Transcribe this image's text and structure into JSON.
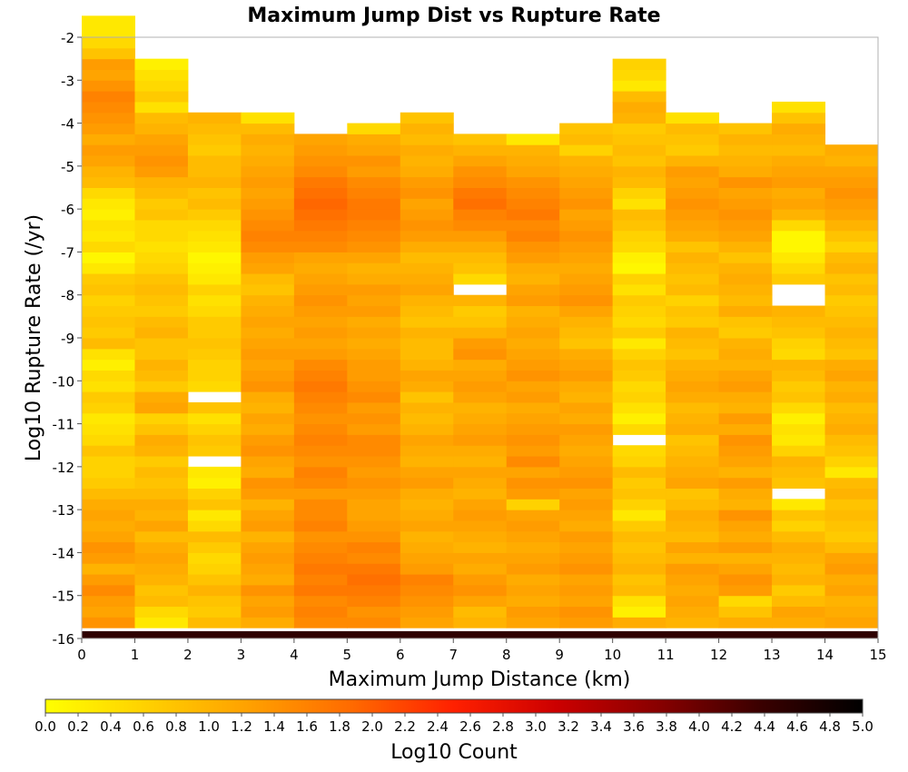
{
  "chart_data": {
    "type": "heatmap",
    "title": "Maximum Jump Dist vs Rupture Rate",
    "xlabel": "Maximum Jump Distance (km)",
    "ylabel": "Log10 Rupture Rate (/yr)",
    "xlim": [
      0,
      15
    ],
    "ylim": [
      -16,
      -2
    ],
    "x_ticks": [
      "0",
      "1",
      "2",
      "3",
      "4",
      "5",
      "6",
      "7",
      "8",
      "9",
      "10",
      "11",
      "12",
      "13",
      "14",
      "15"
    ],
    "y_ticks": [
      "-2",
      "-3",
      "-4",
      "-5",
      "-6",
      "-7",
      "-8",
      "-9",
      "-10",
      "-11",
      "-12",
      "-13",
      "-14",
      "-15",
      "-16"
    ],
    "x_bin_width": 1,
    "y_bin_width": 0.25,
    "y_bins_start": -16,
    "columns_note": "values[c] = Log10 Count per rate bin for x-bin c, ordered from -16 upward",
    "values": [
      [
        4.5,
        1.4,
        1.2,
        1.3,
        1.5,
        1.3,
        1.0,
        1.3,
        1.4,
        1.2,
        1.1,
        1.2,
        1.1,
        0.9,
        0.7,
        0.6,
        0.6,
        0.8,
        0.5,
        0.4,
        0.3,
        0.6,
        0.7,
        0.4,
        0.5,
        0.2,
        0.4,
        0.9,
        0.7,
        0.8,
        0.7,
        0.6,
        0.8,
        0.7,
        0.3,
        0.1,
        0.5,
        0.3,
        0.4,
        0.2,
        0.3,
        0.5,
        0.9,
        1.0,
        1.2,
        1.3,
        1.1,
        1.3,
        1.4,
        1.5,
        1.6,
        1.4,
        1.2,
        1.3,
        0.8,
        0.5,
        0.3,
        0.3
      ],
      [
        4.5,
        0.3,
        0.5,
        0.9,
        0.8,
        1.0,
        1.1,
        1.2,
        1.1,
        0.9,
        1.2,
        1.0,
        1.1,
        0.9,
        0.8,
        0.9,
        0.7,
        1.0,
        1.1,
        0.8,
        0.6,
        1.2,
        1.1,
        0.7,
        0.9,
        1.0,
        0.8,
        0.8,
        1.0,
        0.9,
        0.7,
        0.8,
        0.9,
        0.8,
        0.6,
        0.5,
        0.4,
        0.5,
        0.5,
        0.8,
        0.7,
        0.9,
        1.0,
        1.3,
        1.4,
        1.3,
        1.2,
        1.0,
        0.9,
        0.4,
        0.7,
        0.5,
        0.4,
        0.2
      ],
      [
        4.5,
        0.9,
        0.7,
        0.8,
        1.0,
        0.8,
        0.6,
        0.5,
        0.7,
        0.9,
        0.5,
        0.3,
        0.8,
        0.6,
        0.2,
        0.3,
        -1,
        0.7,
        0.8,
        0.6,
        0.4,
        0.8,
        -1,
        0.5,
        0.6,
        0.6,
        0.7,
        0.8,
        0.7,
        0.7,
        0.5,
        0.4,
        0.6,
        0.3,
        0.2,
        0.1,
        0.3,
        0.4,
        0.5,
        0.7,
        0.9,
        0.8,
        1.0,
        0.9,
        0.9,
        0.7,
        0.8,
        0.9,
        1.0
      ],
      [
        4.5,
        1.1,
        1.3,
        1.2,
        1.4,
        1.1,
        1.2,
        1.3,
        1.2,
        1.0,
        1.3,
        1.2,
        1.0,
        1.3,
        1.4,
        1.1,
        1.2,
        1.4,
        1.3,
        1.1,
        1.2,
        1.0,
        1.1,
        1.4,
        1.3,
        1.2,
        1.3,
        1.2,
        1.1,
        1.2,
        1.1,
        1.0,
        0.8,
        0.9,
        1.2,
        1.3,
        1.5,
        1.6,
        1.5,
        1.4,
        1.3,
        1.2,
        1.3,
        1.2,
        1.1,
        1.0,
        1.1,
        0.9,
        0.4
      ],
      [
        4.5,
        1.5,
        1.6,
        1.5,
        1.7,
        1.6,
        1.7,
        1.6,
        1.5,
        1.4,
        1.6,
        1.5,
        1.5,
        1.3,
        1.5,
        1.6,
        1.4,
        1.5,
        1.6,
        1.5,
        1.4,
        1.5,
        1.6,
        1.7,
        1.6,
        1.5,
        1.3,
        1.2,
        1.3,
        1.2,
        1.3,
        1.4,
        1.3,
        1.2,
        1.1,
        1.2,
        1.5,
        1.6,
        1.7,
        1.8,
        1.9,
        1.8,
        1.7,
        1.5,
        1.4,
        1.3,
        1.2
      ],
      [
        4.5,
        1.5,
        1.4,
        1.6,
        1.7,
        1.8,
        1.7,
        1.5,
        1.6,
        1.4,
        1.3,
        1.2,
        1.2,
        1.3,
        1.4,
        1.3,
        1.4,
        1.5,
        1.5,
        1.3,
        1.4,
        1.3,
        1.5,
        1.4,
        1.3,
        1.3,
        1.2,
        1.1,
        1.2,
        1.1,
        1.3,
        1.2,
        1.3,
        1.1,
        1.0,
        1.2,
        1.4,
        1.5,
        1.6,
        1.7,
        1.7,
        1.6,
        1.5,
        1.3,
        1.4,
        1.2,
        1.1,
        0.5
      ],
      [
        4.5,
        1.2,
        1.3,
        1.4,
        1.5,
        1.6,
        1.3,
        1.2,
        1.1,
        1.0,
        1.2,
        1.1,
        1.0,
        1.1,
        1.3,
        1.2,
        1.0,
        1.1,
        1.2,
        1.0,
        0.9,
        1.0,
        0.8,
        1.1,
        1.2,
        1.0,
        0.9,
        0.9,
        1.0,
        0.8,
        0.9,
        1.0,
        1.2,
        1.1,
        1.0,
        0.9,
        1.1,
        1.3,
        1.4,
        1.3,
        1.2,
        1.4,
        1.3,
        1.1,
        1.0,
        1.1,
        0.9,
        1.0,
        0.8
      ],
      [
        4.5,
        1.0,
        0.9,
        1.2,
        1.4,
        1.3,
        1.1,
        1.2,
        1.0,
        1.1,
        1.2,
        1.3,
        1.2,
        1.0,
        1.1,
        1.2,
        1.0,
        1.1,
        1.3,
        1.2,
        1.1,
        1.0,
        1.2,
        1.3,
        1.2,
        1.1,
        1.4,
        1.3,
        1.0,
        0.8,
        0.7,
        1.0,
        -1,
        0.5,
        0.8,
        0.9,
        1.1,
        1.3,
        1.5,
        1.6,
        1.8,
        1.7,
        1.5,
        1.4,
        1.2,
        1.0,
        0.8
      ],
      [
        4.5,
        1.2,
        1.3,
        1.1,
        1.2,
        1.1,
        1.3,
        1.2,
        1.1,
        1.2,
        1.3,
        1.2,
        0.6,
        1.3,
        1.4,
        1.2,
        1.5,
        1.3,
        1.4,
        1.3,
        1.2,
        1.1,
        1.3,
        1.2,
        1.4,
        1.3,
        1.2,
        1.1,
        1.2,
        1.1,
        1.0,
        1.3,
        1.2,
        1.0,
        1.1,
        1.3,
        1.4,
        1.6,
        1.5,
        1.7,
        1.6,
        1.5,
        1.4,
        1.2,
        1.1,
        1.0,
        0.3
      ],
      [
        4.5,
        1.3,
        1.4,
        1.2,
        1.3,
        1.2,
        1.4,
        1.3,
        1.2,
        1.3,
        1.1,
        1.2,
        1.3,
        1.2,
        1.4,
        1.3,
        1.2,
        1.1,
        1.2,
        1.3,
        1.1,
        1.2,
        1.0,
        1.1,
        1.3,
        1.2,
        1.1,
        0.8,
        0.9,
        1.0,
        1.2,
        1.4,
        1.3,
        1.2,
        1.1,
        1.2,
        1.3,
        1.4,
        1.3,
        1.2,
        1.4,
        1.3,
        1.2,
        1.1,
        1.0,
        0.6,
        0.9,
        0.8
      ],
      [
        4.5,
        1.1,
        0.2,
        0.4,
        0.9,
        0.8,
        1.0,
        0.9,
        0.8,
        0.9,
        0.7,
        0.3,
        0.6,
        0.8,
        0.7,
        0.9,
        0.6,
        0.5,
        -1,
        0.5,
        0.2,
        0.4,
        0.6,
        0.5,
        0.7,
        0.8,
        0.6,
        0.3,
        0.7,
        0.5,
        0.6,
        0.7,
        0.4,
        0.6,
        0.1,
        0.2,
        0.5,
        0.6,
        0.8,
        0.9,
        0.4,
        0.6,
        0.9,
        1.0,
        0.8,
        0.9,
        0.8,
        0.7,
        1.0,
        1.1,
        0.9,
        0.3,
        0.5,
        0.6
      ],
      [
        4.5,
        1.0,
        1.1,
        1.2,
        1.1,
        1.2,
        1.3,
        1.0,
        1.2,
        0.9,
        1.0,
        1.1,
        0.9,
        0.8,
        1.2,
        1.1,
        1.0,
        0.9,
        0.8,
        1.1,
        1.0,
        0.9,
        1.1,
        1.2,
        1.1,
        1.0,
        0.8,
        0.9,
        1.0,
        0.7,
        0.8,
        0.6,
        0.9,
        0.8,
        0.9,
        1.0,
        0.8,
        1.1,
        1.2,
        1.3,
        1.4,
        1.3,
        1.2,
        1.3,
        1.0,
        0.7,
        0.8,
        0.9,
        0.4
      ],
      [
        4.5,
        1.1,
        0.8,
        0.5,
        1.3,
        1.4,
        1.2,
        1.0,
        1.3,
        1.1,
        1.2,
        1.4,
        1.0,
        1.1,
        1.3,
        1.0,
        1.2,
        1.3,
        1.4,
        1.1,
        1.3,
        1.0,
        1.1,
        1.3,
        1.2,
        1.0,
        1.1,
        1.0,
        0.7,
        0.8,
        1.1,
        0.9,
        1.0,
        1.1,
        1.0,
        0.8,
        1.0,
        1.2,
        1.3,
        1.4,
        1.3,
        1.2,
        1.4,
        1.1,
        1.0,
        0.9,
        1.0,
        0.8
      ],
      [
        4.5,
        1.1,
        1.2,
        0.9,
        0.7,
        1.0,
        0.9,
        1.0,
        1.1,
        0.9,
        0.6,
        0.8,
        0.3,
        -1,
        0.8,
        0.9,
        1.0,
        0.6,
        0.3,
        0.4,
        0.2,
        0.5,
        0.8,
        0.7,
        0.9,
        1.0,
        0.5,
        0.6,
        0.8,
        0.9,
        1.0,
        -1,
        -1,
        0.7,
        0.5,
        0.3,
        0.1,
        0.1,
        0.5,
        1.0,
        1.2,
        1.1,
        1.3,
        1.2,
        1.1,
        0.9,
        1.0,
        1.1,
        0.8,
        0.4
      ],
      [
        4.5,
        1.2,
        1.1,
        1.0,
        1.2,
        1.1,
        1.3,
        1.2,
        0.9,
        0.7,
        0.8,
        0.9,
        0.8,
        1.0,
        0.9,
        0.3,
        0.6,
        0.8,
        0.9,
        1.1,
        1.0,
        0.9,
        1.1,
        1.0,
        1.2,
        1.1,
        0.8,
        0.9,
        1.0,
        0.9,
        0.8,
        0.7,
        0.9,
        0.8,
        1.0,
        0.9,
        0.6,
        0.8,
        1.0,
        1.2,
        1.3,
        1.4,
        1.3,
        1.2,
        1.0,
        1.1
      ]
    ],
    "colorbar": {
      "label": "Log10 Count",
      "min": 0.0,
      "max": 5.0,
      "ticks": [
        "0.0",
        "0.2",
        "0.4",
        "0.6",
        "0.8",
        "1.0",
        "1.2",
        "1.4",
        "1.6",
        "1.8",
        "2.0",
        "2.2",
        "2.4",
        "2.6",
        "2.8",
        "3.0",
        "3.2",
        "3.4",
        "3.6",
        "3.8",
        "4.0",
        "4.2",
        "4.4",
        "4.6",
        "4.8",
        "5.0"
      ],
      "stops": [
        "#ffff00",
        "#ffd000",
        "#ffa000",
        "#ff6a00",
        "#ff2000",
        "#cc0000",
        "#880000",
        "#3a0000",
        "#000000"
      ]
    }
  }
}
